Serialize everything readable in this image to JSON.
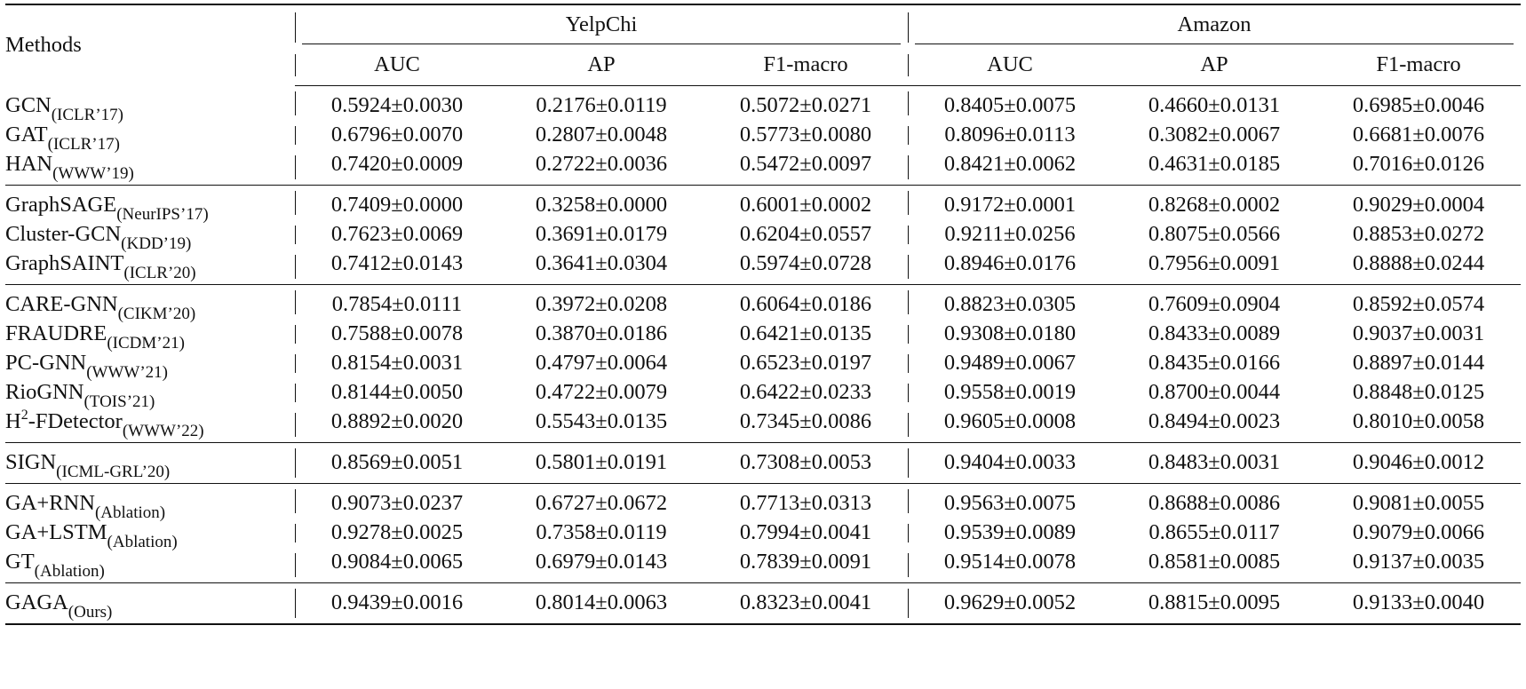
{
  "header": {
    "methods_label": "Methods",
    "datasets": [
      "YelpChi",
      "Amazon"
    ],
    "metrics": [
      "AUC",
      "AP",
      "F1-macro",
      "AUC",
      "AP",
      "F1-macro"
    ]
  },
  "groups": [
    {
      "rows": [
        {
          "name": "GCN",
          "name_sup": "",
          "name_rest": "",
          "venue": "(ICLR’17)",
          "values": [
            "0.5924±0.0030",
            "0.2176±0.0119",
            "0.5072±0.0271",
            "0.8405±0.0075",
            "0.4660±0.0131",
            "0.6985±0.0046"
          ],
          "bold": [
            false,
            false,
            false,
            false,
            false,
            false
          ]
        },
        {
          "name": "GAT",
          "name_sup": "",
          "name_rest": "",
          "venue": "(ICLR’17)",
          "values": [
            "0.6796±0.0070",
            "0.2807±0.0048",
            "0.5773±0.0080",
            "0.8096±0.0113",
            "0.3082±0.0067",
            "0.6681±0.0076"
          ],
          "bold": [
            false,
            false,
            false,
            false,
            false,
            false
          ]
        },
        {
          "name": "HAN",
          "name_sup": "",
          "name_rest": "",
          "venue": "(WWW’19)",
          "values": [
            "0.7420±0.0009",
            "0.2722±0.0036",
            "0.5472±0.0097",
            "0.8421±0.0062",
            "0.4631±0.0185",
            "0.7016±0.0126"
          ],
          "bold": [
            false,
            false,
            false,
            false,
            false,
            false
          ]
        }
      ]
    },
    {
      "rows": [
        {
          "name": "GraphSAGE",
          "name_sup": "",
          "name_rest": "",
          "venue": "(NeurIPS’17)",
          "values": [
            "0.7409±0.0000",
            "0.3258±0.0000",
            "0.6001±0.0002",
            "0.9172±0.0001",
            "0.8268±0.0002",
            "0.9029±0.0004"
          ],
          "bold": [
            false,
            false,
            false,
            false,
            false,
            false
          ]
        },
        {
          "name": "Cluster-GCN",
          "name_sup": "",
          "name_rest": "",
          "venue": "(KDD’19)",
          "values": [
            "0.7623±0.0069",
            "0.3691±0.0179",
            "0.6204±0.0557",
            "0.9211±0.0256",
            "0.8075±0.0566",
            "0.8853±0.0272"
          ],
          "bold": [
            false,
            false,
            false,
            false,
            false,
            false
          ]
        },
        {
          "name": "GraphSAINT",
          "name_sup": "",
          "name_rest": "",
          "venue": "(ICLR’20)",
          "values": [
            "0.7412±0.0143",
            "0.3641±0.0304",
            "0.5974±0.0728",
            "0.8946±0.0176",
            "0.7956±0.0091",
            "0.8888±0.0244"
          ],
          "bold": [
            false,
            false,
            false,
            false,
            false,
            false
          ]
        }
      ]
    },
    {
      "rows": [
        {
          "name": "CARE-GNN",
          "name_sup": "",
          "name_rest": "",
          "venue": "(CIKM’20)",
          "values": [
            "0.7854±0.0111",
            "0.3972±0.0208",
            "0.6064±0.0186",
            "0.8823±0.0305",
            "0.7609±0.0904",
            "0.8592±0.0574"
          ],
          "bold": [
            false,
            false,
            false,
            false,
            false,
            false
          ]
        },
        {
          "name": "FRAUDRE",
          "name_sup": "",
          "name_rest": "",
          "venue": "(ICDM’21)",
          "values": [
            "0.7588±0.0078",
            "0.3870±0.0186",
            "0.6421±0.0135",
            "0.9308±0.0180",
            "0.8433±0.0089",
            "0.9037±0.0031"
          ],
          "bold": [
            false,
            false,
            false,
            false,
            false,
            false
          ]
        },
        {
          "name": "PC-GNN",
          "name_sup": "",
          "name_rest": "",
          "venue": "(WWW’21)",
          "values": [
            "0.8154±0.0031",
            "0.4797±0.0064",
            "0.6523±0.0197",
            "0.9489±0.0067",
            "0.8435±0.0166",
            "0.8897±0.0144"
          ],
          "bold": [
            false,
            false,
            false,
            false,
            false,
            false
          ]
        },
        {
          "name": "RioGNN",
          "name_sup": "",
          "name_rest": "",
          "venue": "(TOIS’21)",
          "values": [
            "0.8144±0.0050",
            "0.4722±0.0079",
            "0.6422±0.0233",
            "0.9558±0.0019",
            "0.8700±0.0044",
            "0.8848±0.0125"
          ],
          "bold": [
            false,
            false,
            false,
            false,
            false,
            false
          ]
        },
        {
          "name": "H",
          "name_sup": "2",
          "name_rest": "-FDetector",
          "venue": "(WWW’22)",
          "values": [
            "0.8892±0.0020",
            "0.5543±0.0135",
            "0.7345±0.0086",
            "0.9605±0.0008",
            "0.8494±0.0023",
            "0.8010±0.0058"
          ],
          "bold": [
            false,
            false,
            false,
            false,
            false,
            false
          ]
        }
      ]
    },
    {
      "rows": [
        {
          "name": "SIGN",
          "name_sup": "",
          "name_rest": "",
          "venue": "(ICML-GRL’20)",
          "values": [
            "0.8569±0.0051",
            "0.5801±0.0191",
            "0.7308±0.0053",
            "0.9404±0.0033",
            "0.8483±0.0031",
            "0.9046±0.0012"
          ],
          "bold": [
            false,
            false,
            false,
            false,
            false,
            false
          ]
        }
      ]
    },
    {
      "rows": [
        {
          "name": "GA+RNN",
          "name_sup": "",
          "name_rest": "",
          "venue": "(Ablation)",
          "values": [
            "0.9073±0.0237",
            "0.6727±0.0672",
            "0.7713±0.0313",
            "0.9563±0.0075",
            "0.8688±0.0086",
            "0.9081±0.0055"
          ],
          "bold": [
            false,
            false,
            false,
            false,
            false,
            false
          ]
        },
        {
          "name": "GA+LSTM",
          "name_sup": "",
          "name_rest": "",
          "venue": "(Ablation)",
          "values": [
            "0.9278±0.0025",
            "0.7358±0.0119",
            "0.7994±0.0041",
            "0.9539±0.0089",
            "0.8655±0.0117",
            "0.9079±0.0066"
          ],
          "bold": [
            false,
            false,
            false,
            false,
            false,
            false
          ]
        },
        {
          "name": "GT",
          "name_sup": "",
          "name_rest": "",
          "venue": "(Ablation)",
          "values": [
            "0.9084±0.0065",
            "0.6979±0.0143",
            "0.7839±0.0091",
            "0.9514±0.0078",
            "0.8581±0.0085",
            "0.9137±0.0035"
          ],
          "bold": [
            false,
            false,
            false,
            false,
            false,
            true
          ]
        }
      ]
    },
    {
      "rows": [
        {
          "name": "GAGA",
          "name_sup": "",
          "name_rest": "",
          "venue": "(Ours)",
          "values": [
            "0.9439±0.0016",
            "0.8014±0.0063",
            "0.8323±0.0041",
            "0.9629±0.0052",
            "0.8815±0.0095",
            "0.9133±0.0040"
          ],
          "bold": [
            true,
            true,
            true,
            true,
            true,
            false
          ]
        }
      ]
    }
  ]
}
